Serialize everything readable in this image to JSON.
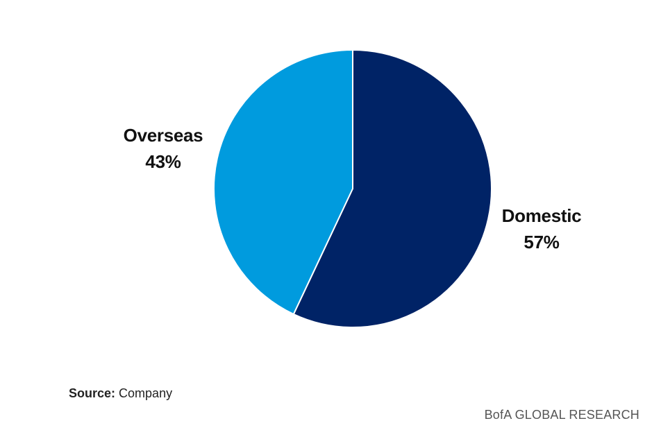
{
  "chart_data": {
    "type": "pie",
    "slices": [
      {
        "label": "Domestic",
        "value": 57,
        "value_label": "57%",
        "color": "#002366"
      },
      {
        "label": "Overseas",
        "value": 43,
        "value_label": "43%",
        "color": "#009BDE"
      }
    ],
    "start_angle": "12 o'clock",
    "direction": "clockwise",
    "slice_separator_color": "#ffffff"
  },
  "footer": {
    "source_label": "Source:",
    "source_value": "Company",
    "brand": "BofA GLOBAL RESEARCH"
  }
}
